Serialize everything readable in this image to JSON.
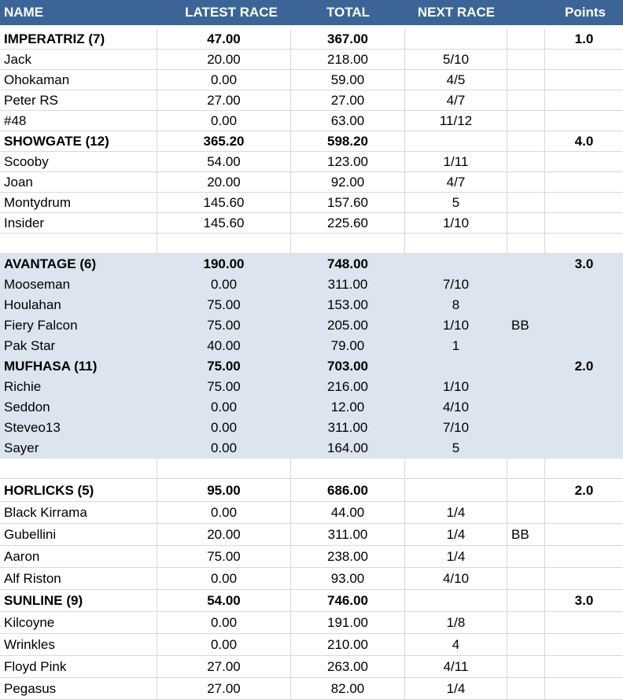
{
  "columns": {
    "name": "NAME",
    "latest_race": "LATEST RACE",
    "total": "TOTAL",
    "next_race": "NEXT RACE",
    "note": "",
    "points": "Points"
  },
  "rows": [
    {
      "kind": "group",
      "shade": false,
      "name": "IMPERATRIZ (7)",
      "latest": "47.00",
      "total": "367.00",
      "next": "",
      "note": "",
      "points": "1.0"
    },
    {
      "kind": "item",
      "shade": false,
      "name": "Jack",
      "latest": "20.00",
      "total": "218.00",
      "next": "5/10",
      "note": "",
      "points": ""
    },
    {
      "kind": "item",
      "shade": false,
      "name": "Ohokaman",
      "latest": "0.00",
      "total": "59.00",
      "next": "4/5",
      "note": "",
      "points": ""
    },
    {
      "kind": "item",
      "shade": false,
      "name": "Peter RS",
      "latest": "27.00",
      "total": "27.00",
      "next": "4/7",
      "note": "",
      "points": ""
    },
    {
      "kind": "item",
      "shade": false,
      "name": "#48",
      "latest": "0.00",
      "total": "63.00",
      "next": "11/12",
      "note": "",
      "points": ""
    },
    {
      "kind": "group",
      "shade": false,
      "name": "SHOWGATE (12)",
      "latest": "365.20",
      "total": "598.20",
      "next": "",
      "note": "",
      "points": "4.0"
    },
    {
      "kind": "item",
      "shade": false,
      "name": "Scooby",
      "latest": "54.00",
      "total": "123.00",
      "next": "1/11",
      "note": "",
      "points": ""
    },
    {
      "kind": "item",
      "shade": false,
      "name": "Joan",
      "latest": "20.00",
      "total": "92.00",
      "next": "4/7",
      "note": "",
      "points": ""
    },
    {
      "kind": "item",
      "shade": false,
      "name": "Montydrum",
      "latest": "145.60",
      "total": "157.60",
      "next": "5",
      "note": "",
      "points": ""
    },
    {
      "kind": "item",
      "shade": false,
      "name": "Insider",
      "latest": "145.60",
      "total": "225.60",
      "next": "1/10",
      "note": "",
      "points": ""
    },
    {
      "kind": "blank",
      "shade": false,
      "name": "",
      "latest": "",
      "total": "",
      "next": "",
      "note": "",
      "points": ""
    },
    {
      "kind": "group",
      "shade": true,
      "name": "AVANTAGE (6)",
      "latest": "190.00",
      "total": "748.00",
      "next": "",
      "note": "",
      "points": "3.0"
    },
    {
      "kind": "item",
      "shade": true,
      "name": "Mooseman",
      "latest": "0.00",
      "total": "311.00",
      "next": "7/10",
      "note": "",
      "points": ""
    },
    {
      "kind": "item",
      "shade": true,
      "name": "Houlahan",
      "latest": "75.00",
      "total": "153.00",
      "next": "8",
      "note": "",
      "points": ""
    },
    {
      "kind": "item",
      "shade": true,
      "name": "Fiery Falcon",
      "latest": "75.00",
      "total": "205.00",
      "next": "1/10",
      "note": "BB",
      "points": ""
    },
    {
      "kind": "item",
      "shade": true,
      "name": "Pak Star",
      "latest": "40.00",
      "total": "79.00",
      "next": "1",
      "note": "",
      "points": ""
    },
    {
      "kind": "group",
      "shade": true,
      "name": "MUFHASA (11)",
      "latest": "75.00",
      "total": "703.00",
      "next": "",
      "note": "",
      "points": "2.0"
    },
    {
      "kind": "item",
      "shade": true,
      "name": "Richie",
      "latest": "75.00",
      "total": "216.00",
      "next": "1/10",
      "note": "",
      "points": ""
    },
    {
      "kind": "item",
      "shade": true,
      "name": "Seddon",
      "latest": "0.00",
      "total": "12.00",
      "next": "4/10",
      "note": "",
      "points": ""
    },
    {
      "kind": "item",
      "shade": true,
      "name": "Steveo13",
      "latest": "0.00",
      "total": "311.00",
      "next": "7/10",
      "note": "",
      "points": ""
    },
    {
      "kind": "item",
      "shade": true,
      "name": "Sayer",
      "latest": "0.00",
      "total": "164.00",
      "next": "5",
      "note": "",
      "points": ""
    },
    {
      "kind": "blank",
      "shade": false,
      "name": "",
      "latest": "",
      "total": "",
      "next": "",
      "note": "",
      "points": ""
    },
    {
      "kind": "group",
      "shade": false,
      "name": "HORLICKS (5)",
      "latest": "95.00",
      "total": "686.00",
      "next": "",
      "note": "",
      "points": "2.0"
    },
    {
      "kind": "item",
      "shade": false,
      "name": "Black Kirrama",
      "latest": "0.00",
      "total": "44.00",
      "next": "1/4",
      "note": "",
      "points": ""
    },
    {
      "kind": "item",
      "shade": false,
      "name": "Gubellini",
      "latest": "20.00",
      "total": "311.00",
      "next": "1/4",
      "note": "BB",
      "points": ""
    },
    {
      "kind": "item",
      "shade": false,
      "name": "Aaron",
      "latest": "75.00",
      "total": "238.00",
      "next": "1/4",
      "note": "",
      "points": ""
    },
    {
      "kind": "item",
      "shade": false,
      "name": "Alf Riston",
      "latest": "0.00",
      "total": "93.00",
      "next": "4/10",
      "note": "",
      "points": ""
    },
    {
      "kind": "group",
      "shade": false,
      "name": "SUNLINE (9)",
      "latest": "54.00",
      "total": "746.00",
      "next": "",
      "note": "",
      "points": "3.0"
    },
    {
      "kind": "item",
      "shade": false,
      "name": "Kilcoyne",
      "latest": "0.00",
      "total": "191.00",
      "next": "1/8",
      "note": "",
      "points": ""
    },
    {
      "kind": "item",
      "shade": false,
      "name": "Wrinkles",
      "latest": "0.00",
      "total": "210.00",
      "next": "4",
      "note": "",
      "points": ""
    },
    {
      "kind": "item",
      "shade": false,
      "name": "Floyd Pink",
      "latest": "27.00",
      "total": "263.00",
      "next": "4/11",
      "note": "",
      "points": ""
    },
    {
      "kind": "item",
      "shade": false,
      "name": "Pegasus",
      "latest": "27.00",
      "total": "82.00",
      "next": "1/4",
      "note": "",
      "points": ""
    }
  ],
  "colors": {
    "header_bg": "#3b6597",
    "header_text": "#ffffff",
    "shade_bg": "#dbe4ef",
    "gridline": "#d9d9d9"
  }
}
